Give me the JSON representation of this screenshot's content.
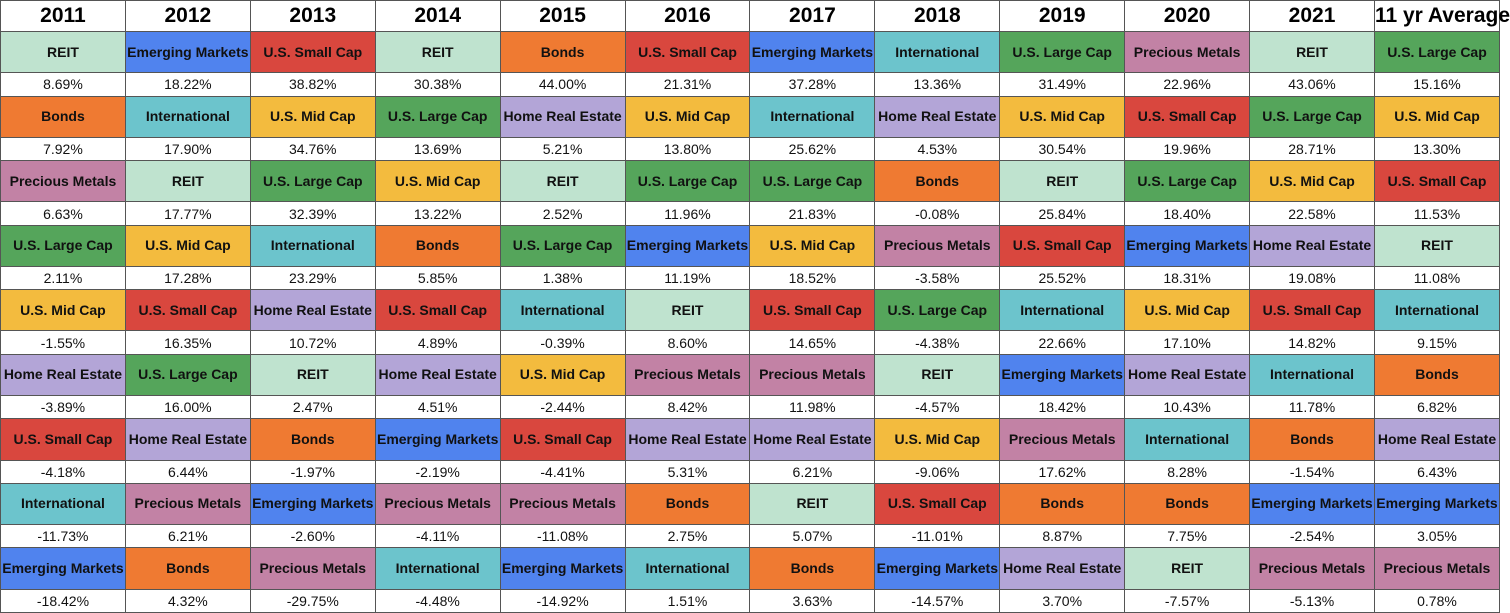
{
  "chart_data": {
    "type": "table",
    "columns": [
      "2011",
      "2012",
      "2013",
      "2014",
      "2015",
      "2016",
      "2017",
      "2018",
      "2019",
      "2020",
      "2021",
      "11 yr Average"
    ],
    "rows": [
      [
        {
          "cat": "REIT",
          "val": "8.69%"
        },
        {
          "cat": "Emerging Markets",
          "val": "18.22%"
        },
        {
          "cat": "U.S. Small Cap",
          "val": "38.82%"
        },
        {
          "cat": "REIT",
          "val": "30.38%"
        },
        {
          "cat": "Bonds",
          "val": "44.00%"
        },
        {
          "cat": "U.S. Small Cap",
          "val": "21.31%"
        },
        {
          "cat": "Emerging Markets",
          "val": "37.28%"
        },
        {
          "cat": "International",
          "val": "13.36%"
        },
        {
          "cat": "U.S. Large Cap",
          "val": "31.49%"
        },
        {
          "cat": "Precious Metals",
          "val": "22.96%"
        },
        {
          "cat": "REIT",
          "val": "43.06%"
        },
        {
          "cat": "U.S. Large Cap",
          "val": "15.16%"
        }
      ],
      [
        {
          "cat": "Bonds",
          "val": "7.92%"
        },
        {
          "cat": "International",
          "val": "17.90%"
        },
        {
          "cat": "U.S. Mid Cap",
          "val": "34.76%"
        },
        {
          "cat": "U.S. Large Cap",
          "val": "13.69%"
        },
        {
          "cat": "Home Real Estate",
          "val": "5.21%"
        },
        {
          "cat": "U.S. Mid Cap",
          "val": "13.80%"
        },
        {
          "cat": "International",
          "val": "25.62%"
        },
        {
          "cat": "Home Real Estate",
          "val": "4.53%"
        },
        {
          "cat": "U.S. Mid Cap",
          "val": "30.54%"
        },
        {
          "cat": "U.S. Small Cap",
          "val": "19.96%"
        },
        {
          "cat": "U.S. Large Cap",
          "val": "28.71%"
        },
        {
          "cat": "U.S. Mid Cap",
          "val": "13.30%"
        }
      ],
      [
        {
          "cat": "Precious Metals",
          "val": "6.63%"
        },
        {
          "cat": "REIT",
          "val": "17.77%"
        },
        {
          "cat": "U.S. Large Cap",
          "val": "32.39%"
        },
        {
          "cat": "U.S. Mid Cap",
          "val": "13.22%"
        },
        {
          "cat": "REIT",
          "val": "2.52%"
        },
        {
          "cat": "U.S. Large Cap",
          "val": "11.96%"
        },
        {
          "cat": "U.S. Large Cap",
          "val": "21.83%"
        },
        {
          "cat": "Bonds",
          "val": "-0.08%"
        },
        {
          "cat": "REIT",
          "val": "25.84%"
        },
        {
          "cat": "U.S. Large Cap",
          "val": "18.40%"
        },
        {
          "cat": "U.S. Mid Cap",
          "val": "22.58%"
        },
        {
          "cat": "U.S. Small Cap",
          "val": "11.53%"
        }
      ],
      [
        {
          "cat": "U.S. Large Cap",
          "val": "2.11%"
        },
        {
          "cat": "U.S. Mid Cap",
          "val": "17.28%"
        },
        {
          "cat": "International",
          "val": "23.29%"
        },
        {
          "cat": "Bonds",
          "val": "5.85%"
        },
        {
          "cat": "U.S. Large Cap",
          "val": "1.38%"
        },
        {
          "cat": "Emerging Markets",
          "val": "11.19%"
        },
        {
          "cat": "U.S. Mid Cap",
          "val": "18.52%"
        },
        {
          "cat": "Precious Metals",
          "val": "-3.58%"
        },
        {
          "cat": "U.S. Small Cap",
          "val": "25.52%"
        },
        {
          "cat": "Emerging Markets",
          "val": "18.31%"
        },
        {
          "cat": "Home Real Estate",
          "val": "19.08%"
        },
        {
          "cat": "REIT",
          "val": "11.08%"
        }
      ],
      [
        {
          "cat": "U.S. Mid Cap",
          "val": "-1.55%"
        },
        {
          "cat": "U.S. Small Cap",
          "val": "16.35%"
        },
        {
          "cat": "Home Real Estate",
          "val": "10.72%"
        },
        {
          "cat": "U.S. Small Cap",
          "val": "4.89%"
        },
        {
          "cat": "International",
          "val": "-0.39%"
        },
        {
          "cat": "REIT",
          "val": "8.60%"
        },
        {
          "cat": "U.S. Small Cap",
          "val": "14.65%"
        },
        {
          "cat": "U.S. Large Cap",
          "val": "-4.38%"
        },
        {
          "cat": "International",
          "val": "22.66%"
        },
        {
          "cat": "U.S. Mid Cap",
          "val": "17.10%"
        },
        {
          "cat": "U.S. Small Cap",
          "val": "14.82%"
        },
        {
          "cat": "International",
          "val": "9.15%"
        }
      ],
      [
        {
          "cat": "Home Real Estate",
          "val": "-3.89%"
        },
        {
          "cat": "U.S. Large Cap",
          "val": "16.00%"
        },
        {
          "cat": "REIT",
          "val": "2.47%"
        },
        {
          "cat": "Home Real Estate",
          "val": "4.51%"
        },
        {
          "cat": "U.S. Mid Cap",
          "val": "-2.44%"
        },
        {
          "cat": "Precious Metals",
          "val": "8.42%"
        },
        {
          "cat": "Precious Metals",
          "val": "11.98%"
        },
        {
          "cat": "REIT",
          "val": "-4.57%"
        },
        {
          "cat": "Emerging Markets",
          "val": "18.42%"
        },
        {
          "cat": "Home Real Estate",
          "val": "10.43%"
        },
        {
          "cat": "International",
          "val": "11.78%"
        },
        {
          "cat": "Bonds",
          "val": "6.82%"
        }
      ],
      [
        {
          "cat": "U.S. Small Cap",
          "val": "-4.18%"
        },
        {
          "cat": "Home Real Estate",
          "val": "6.44%"
        },
        {
          "cat": "Bonds",
          "val": "-1.97%"
        },
        {
          "cat": "Emerging Markets",
          "val": "-2.19%"
        },
        {
          "cat": "U.S. Small Cap",
          "val": "-4.41%"
        },
        {
          "cat": "Home Real Estate",
          "val": "5.31%"
        },
        {
          "cat": "Home Real Estate",
          "val": "6.21%"
        },
        {
          "cat": "U.S. Mid Cap",
          "val": "-9.06%"
        },
        {
          "cat": "Precious Metals",
          "val": "17.62%"
        },
        {
          "cat": "International",
          "val": "8.28%"
        },
        {
          "cat": "Bonds",
          "val": "-1.54%"
        },
        {
          "cat": "Home Real Estate",
          "val": "6.43%"
        }
      ],
      [
        {
          "cat": "International",
          "val": "-11.73%"
        },
        {
          "cat": "Precious Metals",
          "val": "6.21%"
        },
        {
          "cat": "Emerging Markets",
          "val": "-2.60%"
        },
        {
          "cat": "Precious Metals",
          "val": "-4.11%"
        },
        {
          "cat": "Precious Metals",
          "val": "-11.08%"
        },
        {
          "cat": "Bonds",
          "val": "2.75%"
        },
        {
          "cat": "REIT",
          "val": "5.07%"
        },
        {
          "cat": "U.S. Small Cap",
          "val": "-11.01%"
        },
        {
          "cat": "Bonds",
          "val": "8.87%"
        },
        {
          "cat": "Bonds",
          "val": "7.75%"
        },
        {
          "cat": "Emerging Markets",
          "val": "-2.54%"
        },
        {
          "cat": "Emerging Markets",
          "val": "3.05%"
        }
      ],
      [
        {
          "cat": "Emerging Markets",
          "val": "-18.42%"
        },
        {
          "cat": "Bonds",
          "val": "4.32%"
        },
        {
          "cat": "Precious Metals",
          "val": "-29.75%"
        },
        {
          "cat": "International",
          "val": "-4.48%"
        },
        {
          "cat": "Emerging Markets",
          "val": "-14.92%"
        },
        {
          "cat": "International",
          "val": "1.51%"
        },
        {
          "cat": "Bonds",
          "val": "3.63%"
        },
        {
          "cat": "Emerging Markets",
          "val": "-14.57%"
        },
        {
          "cat": "Home Real Estate",
          "val": "3.70%"
        },
        {
          "cat": "REIT",
          "val": "-7.57%"
        },
        {
          "cat": "Precious Metals",
          "val": "-5.13%"
        },
        {
          "cat": "Precious Metals",
          "val": "0.78%"
        }
      ]
    ]
  },
  "category_colors": {
    "REIT": "#bfe3cf",
    "Emerging Markets": "#5083ee",
    "U.S. Small Cap": "#d9473e",
    "Bonds": "#ef7a32",
    "International": "#6cc4cc",
    "U.S. Large Cap": "#55a55b",
    "Precious Metals": "#c282a5",
    "U.S. Mid Cap": "#f3bb3e",
    "Home Real Estate": "#b3a5d7"
  }
}
